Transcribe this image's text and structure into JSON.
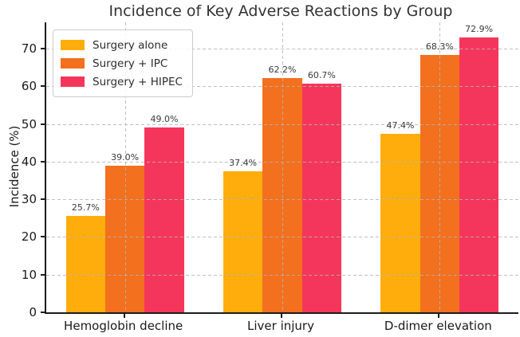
{
  "chart_data": {
    "type": "bar",
    "title": "Incidence of Key Adverse Reactions by Group",
    "xlabel": "",
    "ylabel": "Incidence (%)",
    "categories": [
      "Hemoglobin decline",
      "Liver injury",
      "D-dimer elevation"
    ],
    "series": [
      {
        "name": "Surgery alone",
        "color": "#FFAD0D",
        "values": [
          25.7,
          37.4,
          47.4
        ],
        "labels": [
          "25.7%",
          "37.4%",
          "47.4%"
        ]
      },
      {
        "name": "Surgery + IPC",
        "color": "#F2701E",
        "values": [
          39.0,
          62.2,
          68.3
        ],
        "labels": [
          "39.0%",
          "62.2%",
          "68.3%"
        ]
      },
      {
        "name": "Surgery + HIPEC",
        "color": "#F5365C",
        "values": [
          49.0,
          60.7,
          72.9
        ],
        "labels": [
          "49.0%",
          "60.7%",
          "72.9%"
        ]
      }
    ],
    "y_ticks": [
      0,
      10,
      20,
      30,
      40,
      50,
      60,
      70
    ],
    "ylim": [
      0,
      77
    ],
    "grid": "dashed horizontal at each y tick and vertical at each category center, drawn over bars",
    "legend_position": "upper left"
  },
  "style": {
    "grid_color": "#b4b4b4",
    "spine_color": "#1c1c1c",
    "title_color": "#333333",
    "tick_label_color": "#1a1a1a",
    "value_label_color": "#3a3a3a",
    "background": "#ffffff"
  }
}
